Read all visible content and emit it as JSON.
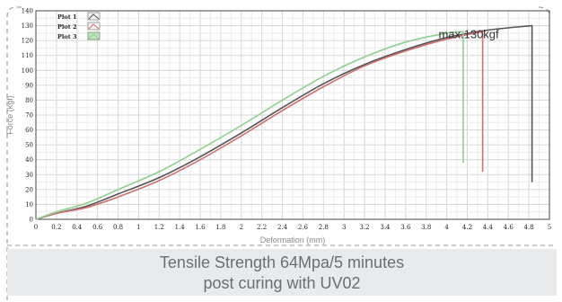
{
  "chart_data": {
    "type": "line",
    "xlabel": "Deformation (mm)",
    "ylabel": "Force (kgf)",
    "xlim": [
      0,
      5
    ],
    "ylim": [
      0,
      140
    ],
    "xticks": [
      "0",
      "0.2",
      "0.4",
      "0.6",
      "0.8",
      "1",
      "1.2",
      "1.4",
      "1.6",
      "1.8",
      "2",
      "2.2",
      "2.4",
      "2.6",
      "2.8",
      "3",
      "3.2",
      "3.4",
      "3.6",
      "3.8",
      "4",
      "4.2",
      "4.4",
      "4.6",
      "4.8",
      "5"
    ],
    "yticks": [
      "0",
      "10",
      "20",
      "30",
      "40",
      "50",
      "60",
      "70",
      "80",
      "90",
      "100",
      "110",
      "120",
      "130",
      "140"
    ],
    "grid": true,
    "legend_position": "top-left",
    "annotation": "max.130kgf",
    "series": [
      {
        "name": "Plot 1",
        "color": "#555555",
        "x": [
          0,
          0.2,
          0.5,
          0.8,
          1.2,
          1.6,
          2.0,
          2.4,
          2.8,
          3.2,
          3.6,
          4.0,
          4.4,
          4.83,
          4.83
        ],
        "y": [
          0,
          4,
          9,
          17,
          28,
          42,
          58,
          75,
          91,
          104,
          114,
          122,
          127,
          130,
          25
        ]
      },
      {
        "name": "Plot 2",
        "color": "#d07070",
        "x": [
          0,
          0.2,
          0.5,
          0.8,
          1.2,
          1.6,
          2.0,
          2.4,
          2.8,
          3.2,
          3.6,
          4.0,
          4.35,
          4.35
        ],
        "y": [
          0,
          4,
          8,
          15,
          26,
          40,
          56,
          73,
          89,
          103,
          113,
          121,
          126,
          32
        ]
      },
      {
        "name": "Plot 3",
        "color": "#8ed08e",
        "x": [
          0,
          0.2,
          0.5,
          0.8,
          1.2,
          1.6,
          2.0,
          2.4,
          2.8,
          3.2,
          3.6,
          4.0,
          4.16,
          4.16
        ],
        "y": [
          0,
          5,
          11,
          20,
          32,
          47,
          63,
          80,
          96,
          109,
          119,
          125,
          126,
          38
        ]
      }
    ]
  },
  "caption": {
    "line1": "Tensile Strength 64Mpa/5 minutes",
    "line2": "post curing with UV02"
  }
}
